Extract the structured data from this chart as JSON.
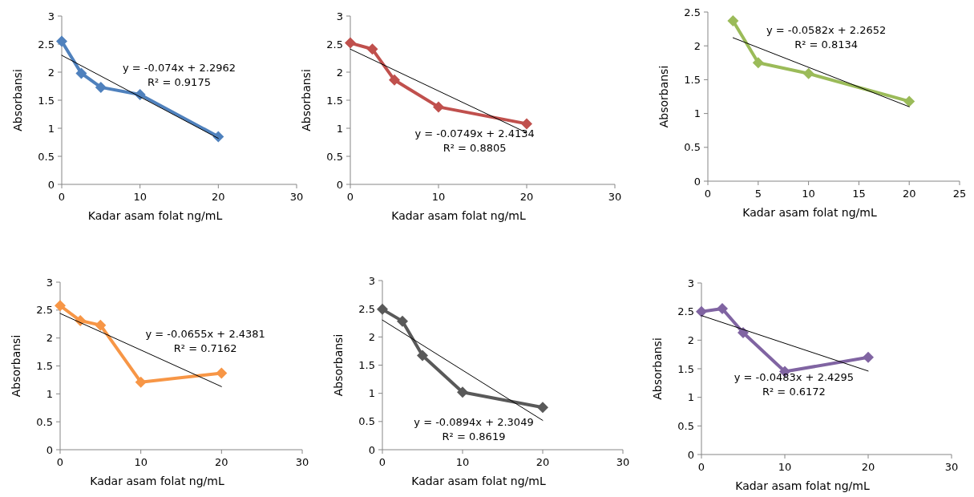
{
  "chart_data": [
    {
      "type": "line",
      "xlabel": "Kadar asam folat ng/mL",
      "ylabel": "Absorbansi",
      "xlim": [
        0,
        30
      ],
      "xticks": [
        0,
        10,
        20,
        30
      ],
      "ylim": [
        0,
        3
      ],
      "yticks": [
        0,
        0.5,
        1,
        1.5,
        2,
        2.5,
        3
      ],
      "marker": "diamond",
      "annotations": [
        "y = -0.074x + 2.2962",
        "R² = 0.9175"
      ],
      "series": [
        {
          "color": "#4f81bd",
          "x": [
            0,
            2.5,
            5,
            10,
            20
          ],
          "values": [
            2.55,
            1.98,
            1.73,
            1.6,
            0.85
          ]
        },
        {
          "type": "line",
          "color": "#000000",
          "marker": "none",
          "x": [
            0,
            20
          ],
          "values": [
            2.3,
            0.82
          ]
        }
      ]
    },
    {
      "type": "line",
      "xlabel": "Kadar asam folat ng/mL",
      "ylabel": "Absorbansi",
      "xlim": [
        0,
        30
      ],
      "xticks": [
        0,
        10,
        20,
        30
      ],
      "ylim": [
        0,
        3
      ],
      "yticks": [
        0,
        0.5,
        1,
        1.5,
        2,
        2.5,
        3
      ],
      "marker": "diamond",
      "annotations": [
        "y = -0.0749x + 2.4134",
        "R² = 0.8805"
      ],
      "series": [
        {
          "color": "#c0504d",
          "x": [
            0,
            2.5,
            5,
            10,
            20
          ],
          "values": [
            2.52,
            2.41,
            1.86,
            1.38,
            1.08
          ]
        },
        {
          "type": "line",
          "color": "#000000",
          "marker": "none",
          "x": [
            0,
            20
          ],
          "values": [
            2.41,
            0.92
          ]
        }
      ]
    },
    {
      "type": "line",
      "xlabel": "Kadar asam folat ng/mL",
      "ylabel": "Absorbansi",
      "xlim": [
        0,
        25
      ],
      "xticks": [
        0,
        5,
        10,
        15,
        20,
        25
      ],
      "ylim": [
        0,
        2.5
      ],
      "yticks": [
        0,
        0.5,
        1,
        1.5,
        2,
        2.5
      ],
      "marker": "diamond",
      "annotations": [
        "y = -0.0582x + 2.2652",
        "R² = 0.8134"
      ],
      "series": [
        {
          "color": "#9bbb59",
          "x": [
            2.5,
            5,
            10,
            20
          ],
          "values": [
            2.37,
            1.75,
            1.59,
            1.18
          ]
        },
        {
          "type": "line",
          "color": "#000000",
          "marker": "none",
          "x": [
            2.5,
            20
          ],
          "values": [
            2.12,
            1.1
          ]
        }
      ]
    },
    {
      "type": "line",
      "xlabel": "Kadar asam folat ng/mL",
      "ylabel": "Absorbansi",
      "xlim": [
        0,
        30
      ],
      "xticks": [
        0,
        10,
        20,
        30
      ],
      "ylim": [
        0,
        3
      ],
      "yticks": [
        0,
        0.5,
        1,
        1.5,
        2,
        2.5,
        3
      ],
      "marker": "diamond",
      "annotations": [
        "y = -0.0655x + 2.4381",
        "R² = 0.7162"
      ],
      "series": [
        {
          "color": "#f79646",
          "x": [
            0,
            2.5,
            5,
            10,
            20
          ],
          "values": [
            2.58,
            2.31,
            2.23,
            1.21,
            1.37
          ]
        },
        {
          "type": "line",
          "color": "#000000",
          "marker": "none",
          "x": [
            0,
            20
          ],
          "values": [
            2.44,
            1.13
          ]
        }
      ]
    },
    {
      "type": "line",
      "xlabel": "Kadar asam folat ng/mL",
      "ylabel": "Absorbansi",
      "xlim": [
        0,
        30
      ],
      "xticks": [
        0,
        10,
        20,
        30
      ],
      "ylim": [
        0,
        3
      ],
      "yticks": [
        0,
        0.5,
        1,
        1.5,
        2,
        2.5,
        3
      ],
      "marker": "diamond",
      "annotations": [
        "y = -0.0894x + 2.3049",
        "R² = 0.8619"
      ],
      "series": [
        {
          "color": "#595959",
          "x": [
            0,
            2.5,
            5,
            10,
            20
          ],
          "values": [
            2.49,
            2.28,
            1.67,
            1.02,
            0.75
          ]
        },
        {
          "type": "line",
          "color": "#000000",
          "marker": "none",
          "x": [
            0,
            20
          ],
          "values": [
            2.3,
            0.52
          ]
        }
      ]
    },
    {
      "type": "line",
      "xlabel": "Kadar asam folat ng/mL",
      "ylabel": "Absorbansi",
      "xlim": [
        0,
        30
      ],
      "xticks": [
        0,
        10,
        20,
        30
      ],
      "ylim": [
        0,
        3
      ],
      "yticks": [
        0,
        0.5,
        1,
        1.5,
        2,
        2.5,
        3
      ],
      "marker": "diamond",
      "annotations": [
        "y = -0.0483x + 2.4295",
        "R² = 0.6172"
      ],
      "series": [
        {
          "color": "#8064a2",
          "x": [
            0,
            2.5,
            5,
            10,
            20
          ],
          "values": [
            2.5,
            2.55,
            2.13,
            1.45,
            1.7
          ]
        },
        {
          "type": "line",
          "color": "#000000",
          "marker": "none",
          "x": [
            0,
            20
          ],
          "values": [
            2.43,
            1.46
          ]
        }
      ]
    }
  ]
}
